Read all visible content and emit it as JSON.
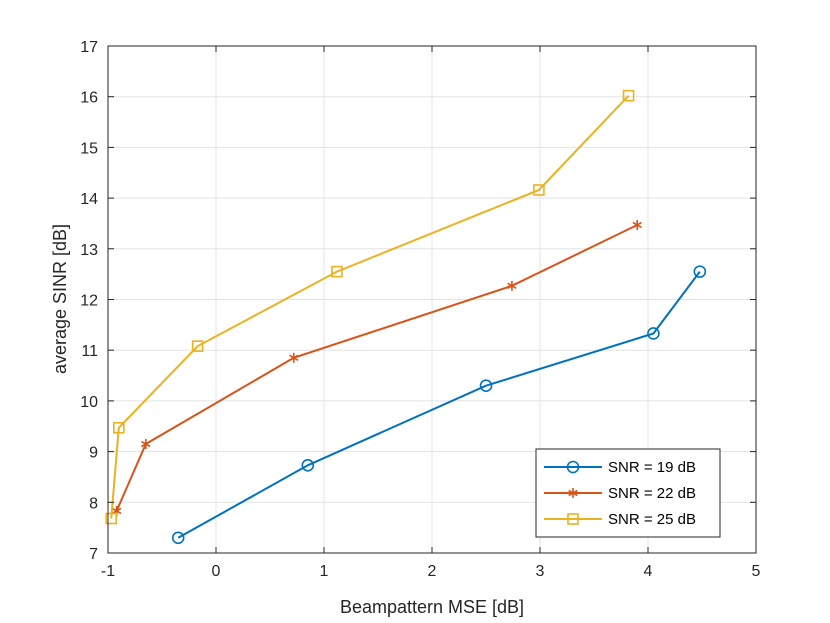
{
  "chart_data": {
    "type": "line",
    "title": "",
    "xlabel": "Beampattern MSE [dB]",
    "ylabel": "average SINR [dB]",
    "xlim": [
      -1,
      5
    ],
    "ylim": [
      7,
      17
    ],
    "xticks": [
      -1,
      0,
      1,
      2,
      3,
      4,
      5
    ],
    "yticks": [
      7,
      8,
      9,
      10,
      11,
      12,
      13,
      14,
      15,
      16,
      17
    ],
    "grid": true,
    "legend_position": "bottom-right",
    "series": [
      {
        "name": "SNR = 19 dB",
        "color": "#0072BD",
        "marker": "circle",
        "x": [
          -0.35,
          0.85,
          2.5,
          4.05,
          4.48
        ],
        "y": [
          7.3,
          8.73,
          10.3,
          11.33,
          12.55
        ]
      },
      {
        "name": "SNR = 22 dB",
        "color": "#D95319",
        "marker": "asterisk",
        "x": [
          -0.92,
          -0.65,
          0.72,
          2.74,
          3.9
        ],
        "y": [
          7.83,
          9.15,
          10.85,
          12.27,
          13.47
        ]
      },
      {
        "name": "SNR = 25 dB",
        "color": "#EDB120",
        "marker": "square",
        "x": [
          -0.97,
          -0.9,
          -0.17,
          1.12,
          2.99,
          3.82
        ],
        "y": [
          7.68,
          9.47,
          11.08,
          12.55,
          14.16,
          16.02
        ]
      }
    ]
  }
}
